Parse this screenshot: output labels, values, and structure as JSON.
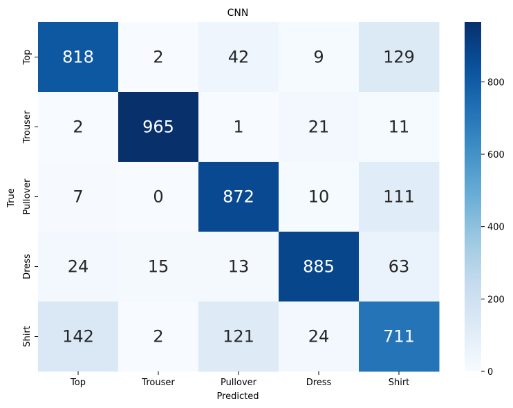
{
  "chart_data": {
    "type": "heatmap",
    "title": "CNN",
    "xlabel": "Predicted",
    "ylabel": "True",
    "x_categories": [
      "Top",
      "Trouser",
      "Pullover",
      "Dress",
      "Shirt"
    ],
    "y_categories": [
      "Top",
      "Trouser",
      "Pullover",
      "Dress",
      "Shirt"
    ],
    "matrix": [
      [
        818,
        2,
        42,
        9,
        129
      ],
      [
        2,
        965,
        1,
        21,
        11
      ],
      [
        7,
        0,
        872,
        10,
        111
      ],
      [
        24,
        15,
        13,
        885,
        63
      ],
      [
        142,
        2,
        121,
        24,
        711
      ]
    ],
    "colormap": "Blues",
    "colorbar": {
      "vmin": 0,
      "vmax": 965,
      "ticks": [
        0,
        200,
        400,
        600,
        800
      ]
    },
    "annotations": true
  }
}
